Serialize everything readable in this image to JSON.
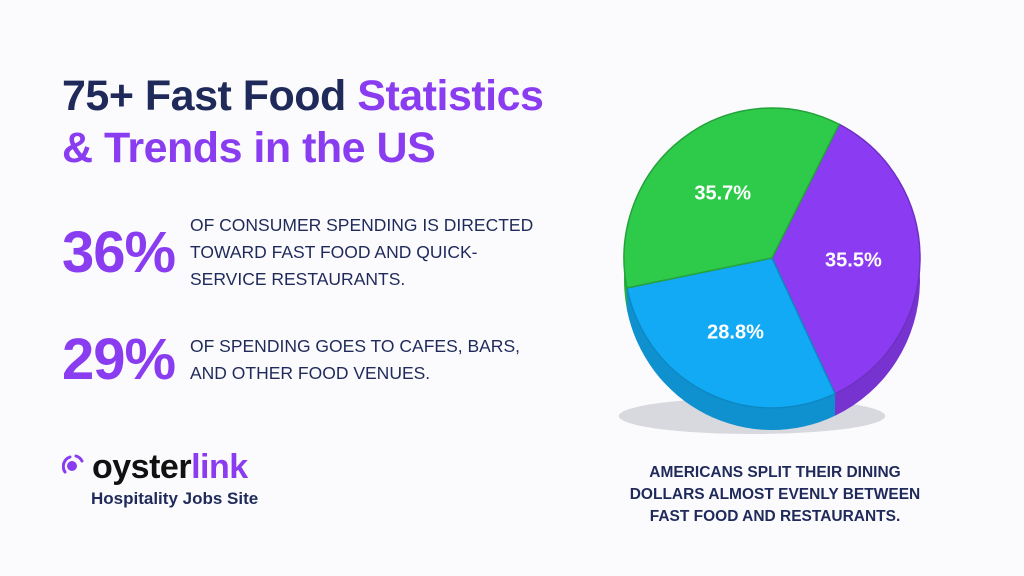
{
  "header": {
    "title_part1": "75+ Fast Food ",
    "title_part2": "Statistics",
    "title_part3": "& Trends in the US"
  },
  "stats": [
    {
      "value": "36%",
      "text": "of consumer spending is directed toward fast food and quick-service restaurants."
    },
    {
      "value": "29%",
      "text": "of spending goes to cafes, bars, and other food venues."
    }
  ],
  "logo": {
    "word_part1": "oyster",
    "word_part2": "link",
    "tagline": "Hospitality Jobs Site"
  },
  "caption": "AMERICANS SPLIT THEIR DINING DOLLARS ALMOST EVENLY BETWEEN FAST FOOD AND RESTAURANTS.",
  "colors": {
    "accent": "#8a3df0",
    "navy": "#1f2a5a"
  },
  "chart_data": {
    "type": "pie",
    "title": "",
    "slices": [
      {
        "label": "35.5%",
        "value": 35.5,
        "color": "#8b3cf3"
      },
      {
        "label": "28.8%",
        "value": 28.8,
        "color": "#12aaf5"
      },
      {
        "label": "35.7%",
        "value": 35.7,
        "color": "#2ecb4a"
      }
    ]
  }
}
